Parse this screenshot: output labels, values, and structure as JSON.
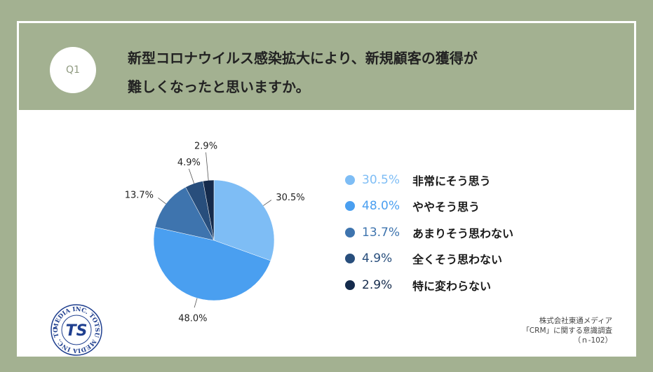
{
  "question": {
    "number": "Q1",
    "title_lines": [
      "新型コロナウイルス感染拡大により、新規顧客の獲得が",
      "難しくなったと思いますか。"
    ]
  },
  "chart_data": {
    "type": "pie",
    "categories": [
      "非常にそう思う",
      "ややそう思う",
      "あまりそう思わない",
      "全くそう思わない",
      "特に変わらない"
    ],
    "values": [
      30.5,
      48.0,
      13.7,
      4.9,
      2.9
    ],
    "value_labels": [
      "30.5%",
      "48.0%",
      "13.7%",
      "4.9%",
      "2.9%"
    ],
    "colors": [
      "#7ebdf5",
      "#4a9ff0",
      "#3e74ae",
      "#284e7c",
      "#152b4c"
    ],
    "start": "12 o'clock",
    "direction": "clockwise",
    "legend_position": "right"
  },
  "source": {
    "lines": [
      "株式会社東通メディア",
      "「CRM」に関する意識調査",
      "（ｎ-102）"
    ]
  },
  "logo": {
    "text": "MEDIA INC. TOTSU MEDIA INC. TOTSU",
    "mark": "TS"
  }
}
